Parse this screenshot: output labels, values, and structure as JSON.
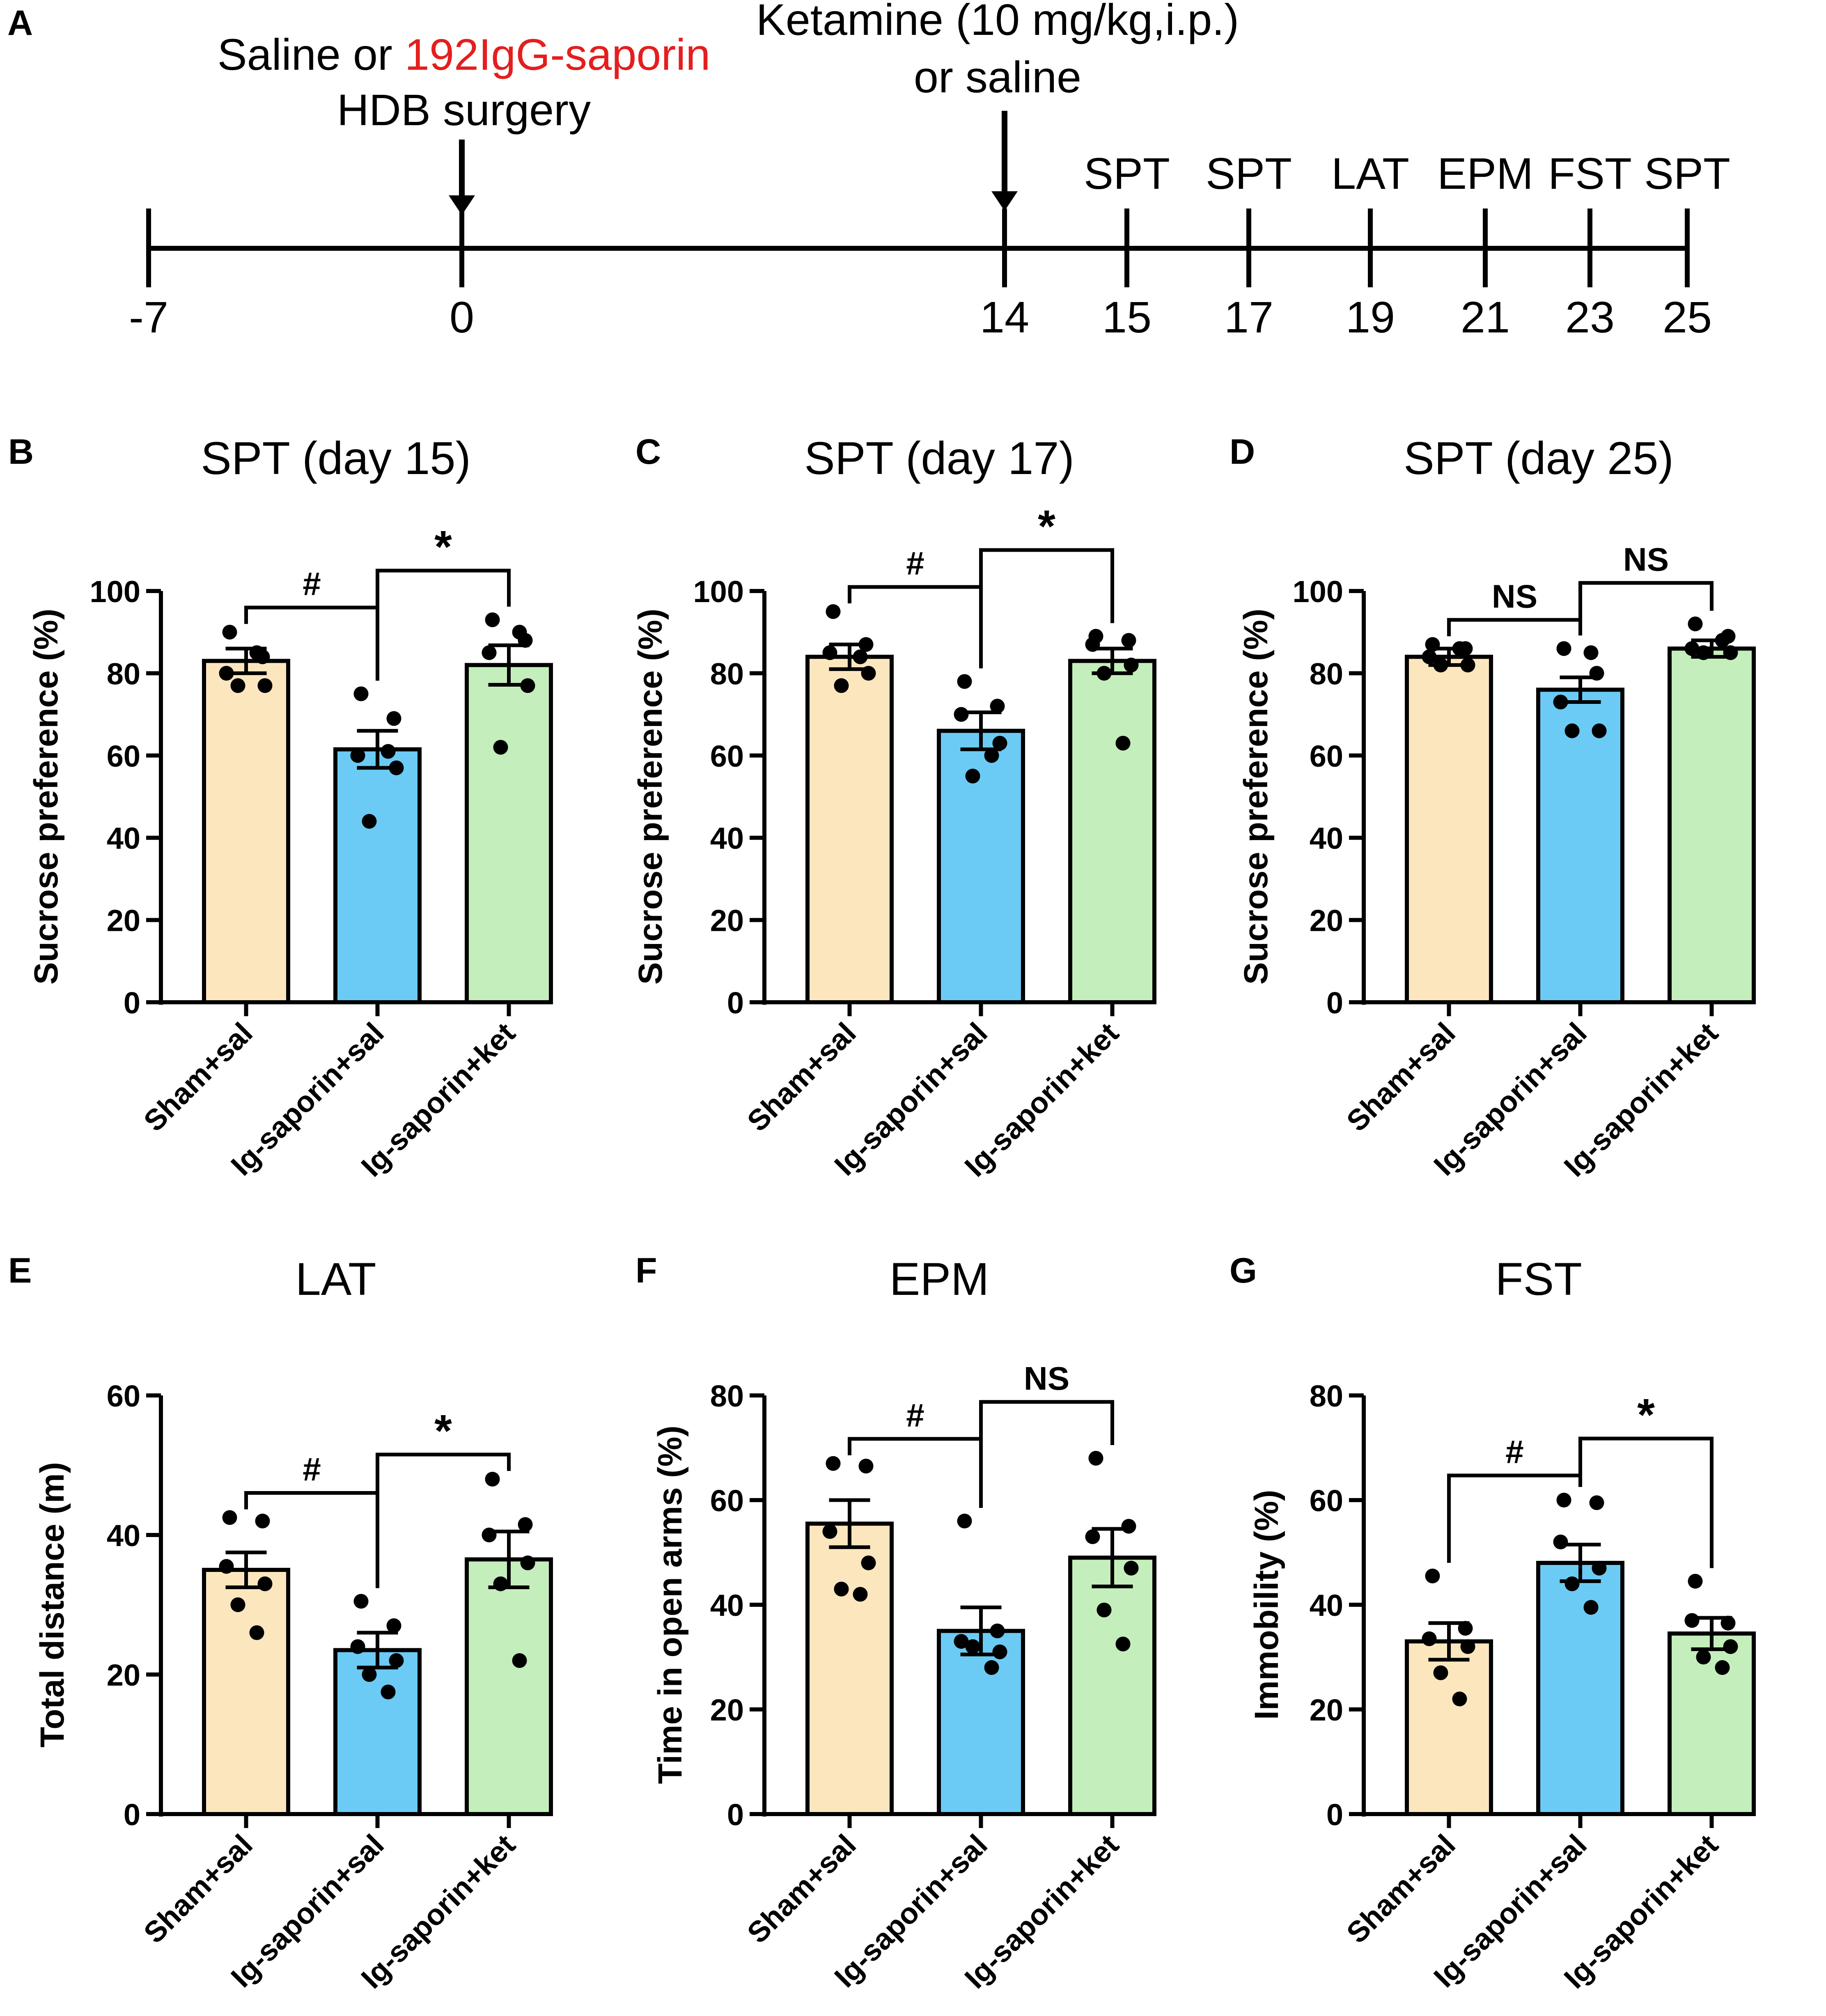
{
  "panel_letters": [
    "A",
    "B",
    "C",
    "D",
    "E",
    "F",
    "G"
  ],
  "colors": {
    "sham": "#FCE6BE",
    "saporin": "#6BCBF5",
    "ket": "#C4EEBB",
    "highlight_red": "#E41E1E",
    "ink": "#000000"
  },
  "timeline": {
    "label_left_prefix": "Saline or ",
    "label_left_red": "192IgG-saporin",
    "label_left_line2": "HDB surgery",
    "label_ketamine_line1": "Ketamine (10 mg/kg,i.p.)",
    "label_ketamine_line2": "or saline",
    "ticks": [
      "-7",
      "0",
      "14",
      "15",
      "17",
      "19",
      "21",
      "23",
      "25"
    ],
    "tests": [
      {
        "day": 15,
        "label": "SPT"
      },
      {
        "day": 17,
        "label": "SPT"
      },
      {
        "day": 19,
        "label": "LAT"
      },
      {
        "day": 21,
        "label": "EPM"
      },
      {
        "day": 23,
        "label": "FST"
      },
      {
        "day": 25,
        "label": "SPT"
      }
    ]
  },
  "chart_data": [
    {
      "panel": "B",
      "type": "bar",
      "title": "SPT (day 15)",
      "ylabel": "Sucrose preference (%)",
      "ylim": [
        0,
        100
      ],
      "yticks": [
        0,
        20,
        40,
        60,
        80,
        100
      ],
      "categories": [
        "Sham+sal",
        "Ig-saporin+sal",
        "Ig-saporin+ket"
      ],
      "values": [
        83,
        61.5,
        82
      ],
      "sem": [
        3,
        4.5,
        4.8
      ],
      "points": [
        [
          90,
          84,
          80,
          77,
          77,
          85
        ],
        [
          75,
          69,
          60,
          57,
          44,
          61
        ],
        [
          93,
          88,
          85,
          77,
          62,
          90
        ]
      ],
      "significance": [
        {
          "pair": [
            0,
            1
          ],
          "label": "#"
        },
        {
          "pair": [
            1,
            2
          ],
          "label": "*"
        }
      ]
    },
    {
      "panel": "C",
      "type": "bar",
      "title": "SPT (day 17)",
      "ylabel": "Sucrose preference (%)",
      "ylim": [
        0,
        100
      ],
      "yticks": [
        0,
        20,
        40,
        60,
        80,
        100
      ],
      "categories": [
        "Sham+sal",
        "Ig-saporin+sal",
        "Ig-saporin+ket"
      ],
      "values": [
        84,
        66,
        83
      ],
      "sem": [
        3,
        4.5,
        3
      ],
      "points": [
        [
          95,
          87,
          85,
          80,
          77,
          84
        ],
        [
          78,
          72,
          70,
          63,
          55,
          60
        ],
        [
          89,
          88,
          87,
          82,
          80,
          63
        ]
      ],
      "significance": [
        {
          "pair": [
            0,
            1
          ],
          "label": "#"
        },
        {
          "pair": [
            1,
            2
          ],
          "label": "*"
        }
      ]
    },
    {
      "panel": "D",
      "type": "bar",
      "title": "SPT (day 25)",
      "ylabel": "Sucrose preference (%)",
      "ylim": [
        0,
        100
      ],
      "yticks": [
        0,
        20,
        40,
        60,
        80,
        100
      ],
      "categories": [
        "Sham+sal",
        "Ig-saporin+sal",
        "Ig-saporin+ket"
      ],
      "values": [
        84,
        76,
        86
      ],
      "sem": [
        2,
        3,
        2
      ],
      "points": [
        [
          87,
          86,
          84,
          82,
          82,
          86
        ],
        [
          86,
          80,
          73,
          66,
          66,
          85
        ],
        [
          92,
          89,
          86,
          85,
          85,
          88
        ]
      ],
      "significance": [
        {
          "pair": [
            0,
            1
          ],
          "label": "NS"
        },
        {
          "pair": [
            1,
            2
          ],
          "label": "NS"
        }
      ]
    },
    {
      "panel": "E",
      "type": "bar",
      "title": "LAT",
      "ylabel": "Total distance (m)",
      "ylim": [
        0,
        60
      ],
      "yticks": [
        0,
        20,
        40,
        60
      ],
      "categories": [
        "Sham+sal",
        "Ig-saporin+sal",
        "Ig-saporin+ket"
      ],
      "values": [
        35,
        23.5,
        36.5
      ],
      "sem": [
        2.5,
        2.5,
        4
      ],
      "points": [
        [
          42.5,
          42,
          35.5,
          33,
          30,
          26
        ],
        [
          30.5,
          27,
          24,
          22,
          20,
          17.5
        ],
        [
          48,
          41.5,
          40,
          36,
          33,
          22
        ]
      ],
      "significance": [
        {
          "pair": [
            0,
            1
          ],
          "label": "#"
        },
        {
          "pair": [
            1,
            2
          ],
          "label": "*"
        }
      ]
    },
    {
      "panel": "F",
      "type": "bar",
      "title": "EPM",
      "ylabel": "Time in open arms (%)",
      "ylim": [
        0,
        80
      ],
      "yticks": [
        0,
        20,
        40,
        60,
        80
      ],
      "categories": [
        "Sham+sal",
        "Ig-saporin+sal",
        "Ig-saporin+ket"
      ],
      "values": [
        55.5,
        35,
        49
      ],
      "sem": [
        4.5,
        4.5,
        5.5
      ],
      "points": [
        [
          67,
          66.5,
          54,
          48,
          43,
          42
        ],
        [
          56,
          35,
          33,
          31,
          32,
          28
        ],
        [
          68,
          55,
          53,
          47,
          39,
          32.5
        ]
      ],
      "significance": [
        {
          "pair": [
            0,
            1
          ],
          "label": "#"
        },
        {
          "pair": [
            1,
            2
          ],
          "label": "NS"
        }
      ]
    },
    {
      "panel": "G",
      "type": "bar",
      "title": "FST",
      "ylabel": "Immobility (%)",
      "ylim": [
        0,
        80
      ],
      "yticks": [
        0,
        20,
        40,
        60,
        80
      ],
      "categories": [
        "Sham+sal",
        "Ig-saporin+sal",
        "Ig-saporin+ket"
      ],
      "values": [
        33,
        48,
        34.5
      ],
      "sem": [
        3.5,
        3.5,
        3
      ],
      "points": [
        [
          45.5,
          35.5,
          33.5,
          32,
          27,
          22
        ],
        [
          60,
          59.5,
          52,
          47,
          44,
          39.5
        ],
        [
          44.5,
          36.5,
          37,
          32,
          30,
          28
        ]
      ],
      "significance": [
        {
          "pair": [
            0,
            1
          ],
          "label": "#"
        },
        {
          "pair": [
            1,
            2
          ],
          "label": "*"
        }
      ]
    }
  ]
}
